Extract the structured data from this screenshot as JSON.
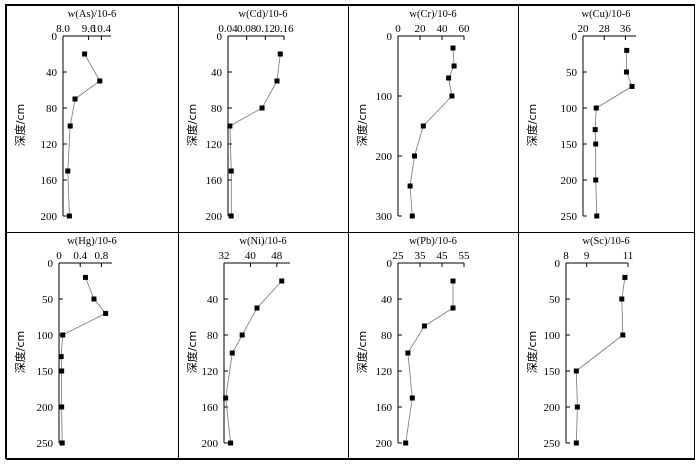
{
  "ylabel": "深度/cm",
  "chart_data": [
    {
      "type": "line",
      "title": "w(As)/10-6",
      "element": "As",
      "ylabel": "深度/cm",
      "x_ticks": [
        8.0,
        9.6,
        10.4
      ],
      "x_tick_labels": [
        "8.0",
        "9.6",
        "10.4"
      ],
      "xlim": [
        8.0,
        11.0
      ],
      "y_ticks": [
        0,
        40,
        80,
        120,
        160,
        200
      ],
      "ylim": [
        0,
        200
      ],
      "points": [
        {
          "x": 9.35,
          "y": 20
        },
        {
          "x": 10.3,
          "y": 50
        },
        {
          "x": 8.75,
          "y": 70
        },
        {
          "x": 8.45,
          "y": 100
        },
        {
          "x": 8.3,
          "y": 150
        },
        {
          "x": 8.4,
          "y": 200
        }
      ]
    },
    {
      "type": "line",
      "title": "w(Cd)/10-6",
      "element": "Cd",
      "ylabel": "深度/cm",
      "x_ticks": [
        0.04,
        0.08,
        0.12,
        0.16
      ],
      "x_tick_labels": [
        "0.04",
        "0.08",
        "0.12",
        "0.16"
      ],
      "xlim": [
        0.04,
        0.16
      ],
      "y_ticks": [
        0,
        40,
        80,
        120,
        160,
        200
      ],
      "ylim": [
        0,
        200
      ],
      "points": [
        {
          "x": 0.152,
          "y": 20
        },
        {
          "x": 0.145,
          "y": 50
        },
        {
          "x": 0.113,
          "y": 80
        },
        {
          "x": 0.044,
          "y": 100
        },
        {
          "x": 0.047,
          "y": 150
        },
        {
          "x": 0.047,
          "y": 200
        }
      ]
    },
    {
      "type": "line",
      "title": "w(Cr)/10-6",
      "element": "Cr",
      "ylabel": "深度/cm",
      "x_ticks": [
        0,
        20,
        40,
        60
      ],
      "x_tick_labels": [
        "0",
        "20",
        "40",
        "60"
      ],
      "xlim": [
        0,
        60
      ],
      "y_ticks": [
        0,
        100,
        200,
        300
      ],
      "ylim": [
        0,
        300
      ],
      "points": [
        {
          "x": 50,
          "y": 20
        },
        {
          "x": 51,
          "y": 50
        },
        {
          "x": 46,
          "y": 70
        },
        {
          "x": 49,
          "y": 100
        },
        {
          "x": 23,
          "y": 150
        },
        {
          "x": 15,
          "y": 200
        },
        {
          "x": 11,
          "y": 250
        },
        {
          "x": 13,
          "y": 300
        }
      ]
    },
    {
      "type": "line",
      "title": "w(Cu)/10-6",
      "element": "Cu",
      "ylabel": "深度/cm",
      "x_ticks": [
        20,
        28,
        36
      ],
      "x_tick_labels": [
        "20",
        "28",
        "36"
      ],
      "xlim": [
        20,
        40
      ],
      "y_ticks": [
        0,
        50,
        100,
        150,
        200,
        250
      ],
      "ylim": [
        0,
        250
      ],
      "points": [
        {
          "x": 36.5,
          "y": 20
        },
        {
          "x": 36.4,
          "y": 50
        },
        {
          "x": 38.5,
          "y": 70
        },
        {
          "x": 25,
          "y": 100
        },
        {
          "x": 24.6,
          "y": 130
        },
        {
          "x": 24.8,
          "y": 150
        },
        {
          "x": 24.8,
          "y": 200
        },
        {
          "x": 25.2,
          "y": 250
        }
      ]
    },
    {
      "type": "line",
      "title": "w(Hg)/10-6",
      "element": "Hg",
      "ylabel": "深度/cm",
      "x_ticks": [
        0,
        0.4,
        0.8
      ],
      "x_tick_labels": [
        "0",
        "0.4",
        "0.8"
      ],
      "xlim": [
        0,
        1.0
      ],
      "y_ticks": [
        0,
        50,
        100,
        150,
        200,
        250
      ],
      "ylim": [
        0,
        250
      ],
      "points": [
        {
          "x": 0.5,
          "y": 20
        },
        {
          "x": 0.66,
          "y": 50
        },
        {
          "x": 0.88,
          "y": 70
        },
        {
          "x": 0.07,
          "y": 100
        },
        {
          "x": 0.04,
          "y": 130
        },
        {
          "x": 0.05,
          "y": 150
        },
        {
          "x": 0.05,
          "y": 200
        },
        {
          "x": 0.06,
          "y": 250
        }
      ]
    },
    {
      "type": "line",
      "title": "w(Ni)/10-6",
      "element": "Ni",
      "ylabel": "深度/cm",
      "x_ticks": [
        32,
        40,
        48
      ],
      "x_tick_labels": [
        "32",
        "40",
        "48"
      ],
      "xlim": [
        32,
        52
      ],
      "y_ticks": [
        40,
        80,
        120,
        160,
        200
      ],
      "ylim": [
        0,
        200
      ],
      "points": [
        {
          "x": 49.5,
          "y": 20
        },
        {
          "x": 42,
          "y": 50
        },
        {
          "x": 37.5,
          "y": 80
        },
        {
          "x": 34.5,
          "y": 100
        },
        {
          "x": 32.5,
          "y": 150
        },
        {
          "x": 34,
          "y": 200
        }
      ]
    },
    {
      "type": "line",
      "title": "w(Pb)/10-6",
      "element": "Pb",
      "ylabel": "深度/cm",
      "x_ticks": [
        25,
        35,
        45,
        55
      ],
      "x_tick_labels": [
        "25",
        "35",
        "45",
        "55"
      ],
      "xlim": [
        25,
        55
      ],
      "y_ticks": [
        0,
        40,
        80,
        120,
        160,
        200
      ],
      "ylim": [
        0,
        200
      ],
      "points": [
        {
          "x": 50,
          "y": 20
        },
        {
          "x": 50,
          "y": 50
        },
        {
          "x": 37,
          "y": 70
        },
        {
          "x": 29.5,
          "y": 100
        },
        {
          "x": 31.5,
          "y": 150
        },
        {
          "x": 28.5,
          "y": 200
        }
      ]
    },
    {
      "type": "line",
      "title": "w(Sc)/10-6",
      "element": "Sc",
      "ylabel": "深度/cm",
      "x_ticks": [
        8,
        9,
        11
      ],
      "x_tick_labels": [
        "8",
        "9",
        "11"
      ],
      "xlim": [
        8,
        11
      ],
      "y_ticks": [
        0,
        50,
        100,
        150,
        200,
        250
      ],
      "ylim": [
        0,
        250
      ],
      "points": [
        {
          "x": 10.85,
          "y": 20
        },
        {
          "x": 10.7,
          "y": 50
        },
        {
          "x": 10.75,
          "y": 100
        },
        {
          "x": 8.5,
          "y": 150
        },
        {
          "x": 8.55,
          "y": 200
        },
        {
          "x": 8.5,
          "y": 250
        }
      ]
    }
  ]
}
